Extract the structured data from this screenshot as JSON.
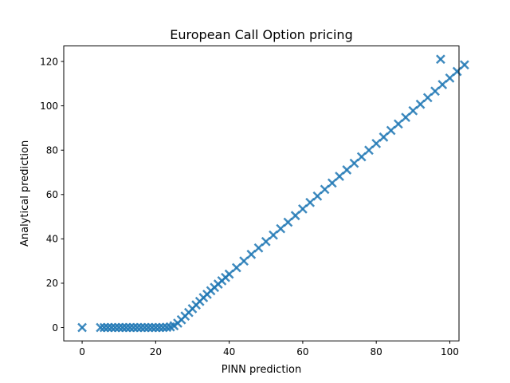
{
  "chart_data": {
    "type": "scatter",
    "title": "European Call Option pricing",
    "xlabel": "PINN prediction",
    "ylabel": "Analytical prediction",
    "xlim": [
      -5.0,
      102.5
    ],
    "ylim": [
      -6.0,
      127.0
    ],
    "xticks": [
      0,
      20,
      40,
      60,
      80,
      100
    ],
    "yticks": [
      0,
      20,
      40,
      60,
      80,
      100,
      120
    ],
    "marker": "x",
    "color": "#1f77b4",
    "grid": false,
    "legend": false,
    "points": [
      [
        0.0,
        0.0
      ],
      [
        5.0,
        0.0
      ],
      [
        6.0,
        0.0
      ],
      [
        7.0,
        0.0
      ],
      [
        8.0,
        0.0
      ],
      [
        9.0,
        0.0
      ],
      [
        10.0,
        0.0
      ],
      [
        11.0,
        0.0
      ],
      [
        12.0,
        0.0
      ],
      [
        13.0,
        0.0
      ],
      [
        14.0,
        0.0
      ],
      [
        15.0,
        0.0
      ],
      [
        16.0,
        0.0
      ],
      [
        17.0,
        0.0
      ],
      [
        18.0,
        0.0
      ],
      [
        19.0,
        0.0
      ],
      [
        20.0,
        0.0
      ],
      [
        21.0,
        0.0
      ],
      [
        22.0,
        0.0
      ],
      [
        23.0,
        0.1
      ],
      [
        24.0,
        0.3
      ],
      [
        25.0,
        0.8
      ],
      [
        26.0,
        2.0
      ],
      [
        27.0,
        3.5
      ],
      [
        28.0,
        5.2
      ],
      [
        29.0,
        6.8
      ],
      [
        30.0,
        8.5
      ],
      [
        31.0,
        10.2
      ],
      [
        32.0,
        11.8
      ],
      [
        33.0,
        13.5
      ],
      [
        34.0,
        15.0
      ],
      [
        35.0,
        16.6
      ],
      [
        36.0,
        18.1
      ],
      [
        37.0,
        19.6
      ],
      [
        38.0,
        21.1
      ],
      [
        39.0,
        22.6
      ],
      [
        40.0,
        24.1
      ],
      [
        42.0,
        27.0
      ],
      [
        44.0,
        30.0
      ],
      [
        46.0,
        33.0
      ],
      [
        48.0,
        35.9
      ],
      [
        50.0,
        38.8
      ],
      [
        52.0,
        41.7
      ],
      [
        54.0,
        44.6
      ],
      [
        56.0,
        47.5
      ],
      [
        58.0,
        50.5
      ],
      [
        60.0,
        53.5
      ],
      [
        62.0,
        56.4
      ],
      [
        64.0,
        59.3
      ],
      [
        66.0,
        62.3
      ],
      [
        68.0,
        65.2
      ],
      [
        70.0,
        68.2
      ],
      [
        72.0,
        71.1
      ],
      [
        74.0,
        74.1
      ],
      [
        76.0,
        77.0
      ],
      [
        78.0,
        80.0
      ],
      [
        80.0,
        83.0
      ],
      [
        82.0,
        85.9
      ],
      [
        84.0,
        88.9
      ],
      [
        86.0,
        91.8
      ],
      [
        88.0,
        94.8
      ],
      [
        90.0,
        97.8
      ],
      [
        92.0,
        100.7
      ],
      [
        94.0,
        103.7
      ],
      [
        96.0,
        106.6
      ],
      [
        98.0,
        109.6
      ],
      [
        100.0,
        112.5
      ],
      [
        102.0,
        115.5
      ],
      [
        104.0,
        118.5
      ],
      [
        97.5,
        121.0
      ]
    ]
  }
}
